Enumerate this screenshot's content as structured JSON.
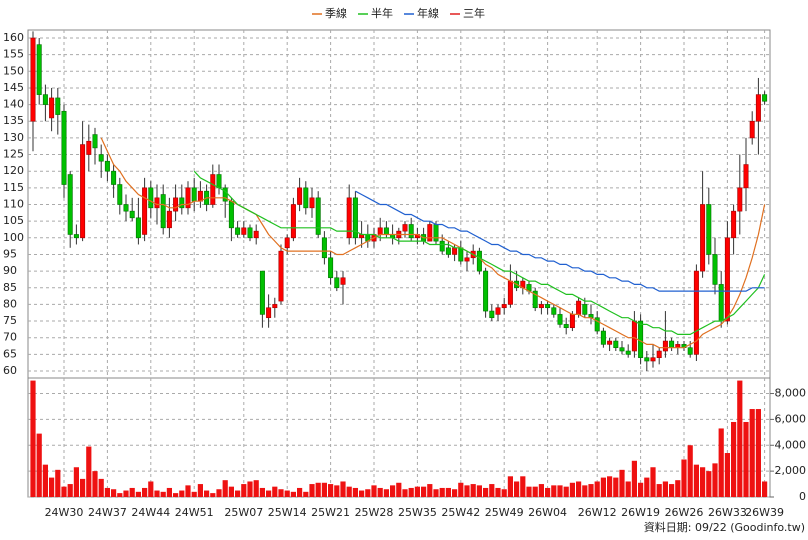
{
  "chart_data": [
    {
      "type": "candlestick",
      "categories": [
        null,
        null,
        null,
        null,
        null,
        "24W30",
        null,
        null,
        null,
        null,
        null,
        null,
        "24W37",
        null,
        null,
        null,
        null,
        null,
        null,
        "24W44",
        null,
        null,
        null,
        null,
        null,
        null,
        "24W51",
        null,
        null,
        null,
        null,
        null,
        null,
        null,
        "25W07",
        null,
        null,
        null,
        null,
        null,
        null,
        "25W14",
        null,
        null,
        null,
        null,
        null,
        null,
        "25W21",
        null,
        null,
        null,
        null,
        null,
        null,
        "25W28",
        null,
        null,
        null,
        null,
        null,
        null,
        "25W35",
        null,
        null,
        null,
        null,
        null,
        null,
        "25W42",
        null,
        null,
        null,
        null,
        null,
        null,
        "25W49",
        null,
        null,
        null,
        null,
        null,
        null,
        "26W04",
        null,
        null,
        null,
        null,
        null,
        null,
        null,
        "26W12",
        null,
        null,
        null,
        null,
        null,
        null,
        "26W19",
        null,
        null,
        null,
        null,
        null,
        null,
        "26W26",
        null,
        null,
        null,
        null,
        null,
        null,
        "26W33",
        null,
        null,
        null,
        null,
        null,
        "26W39"
      ],
      "open": [
        135,
        158,
        143,
        136,
        142,
        138,
        119,
        101,
        100,
        125,
        131,
        125,
        123,
        120,
        116,
        110,
        108,
        106,
        101,
        115,
        109,
        113,
        103,
        108,
        112,
        109,
        115,
        111,
        114,
        110,
        119,
        115,
        111,
        103,
        101,
        103,
        100,
        90,
        76,
        79,
        81,
        97,
        100,
        110,
        115,
        109,
        112,
        100,
        94,
        88,
        86,
        100,
        112,
        100,
        101,
        99,
        101,
        103,
        101,
        100,
        102,
        104,
        100,
        101,
        99,
        104,
        99,
        97,
        95,
        97,
        93,
        94,
        96,
        90,
        78,
        77,
        79,
        80,
        87,
        85,
        86,
        84,
        79,
        80,
        79,
        77,
        74,
        73,
        77,
        80,
        77,
        76,
        72,
        68,
        69,
        67,
        66,
        66,
        75,
        64,
        63,
        64,
        66,
        69,
        67,
        68,
        67,
        65,
        90,
        110,
        95,
        86,
        75,
        100,
        108,
        115,
        130,
        135,
        143
      ],
      "high": [
        162,
        160,
        146,
        145,
        145,
        140,
        120,
        104,
        135,
        134,
        133,
        128,
        125,
        122,
        118,
        113,
        112,
        112,
        118,
        117,
        116,
        116,
        112,
        116,
        116,
        117,
        118,
        117,
        116,
        122,
        122,
        116,
        112,
        105,
        105,
        104,
        104,
        90,
        83,
        82,
        98,
        101,
        112,
        118,
        117,
        115,
        114,
        102,
        96,
        90,
        90,
        116,
        114,
        105,
        104,
        103,
        106,
        105,
        104,
        103,
        105,
        106,
        103,
        103,
        105,
        105,
        101,
        99,
        98,
        99,
        96,
        98,
        97,
        91,
        80,
        80,
        82,
        92,
        90,
        88,
        87,
        85,
        81,
        81,
        80,
        79,
        76,
        78,
        82,
        82,
        80,
        78,
        73,
        70,
        70,
        69,
        68,
        78,
        77,
        66,
        68,
        67,
        78,
        70,
        69,
        69,
        69,
        92,
        120,
        115,
        100,
        90,
        105,
        110,
        125,
        130,
        138,
        148,
        144
      ],
      "low": [
        126,
        140,
        135,
        132,
        131,
        112,
        97,
        98,
        99,
        120,
        122,
        118,
        117,
        112,
        107,
        105,
        105,
        98,
        99,
        106,
        104,
        101,
        100,
        105,
        107,
        107,
        108,
        109,
        108,
        109,
        113,
        106,
        99,
        100,
        100,
        99,
        98,
        73,
        73,
        76,
        80,
        95,
        99,
        108,
        107,
        106,
        100,
        92,
        86,
        84,
        80,
        98,
        98,
        97,
        97,
        97,
        99,
        100,
        98,
        98,
        100,
        99,
        98,
        98,
        99,
        98,
        95,
        94,
        93,
        92,
        90,
        92,
        89,
        76,
        75,
        75,
        77,
        79,
        84,
        83,
        83,
        78,
        77,
        77,
        76,
        73,
        71,
        72,
        76,
        76,
        74,
        71,
        67,
        66,
        66,
        65,
        64,
        64,
        62,
        60,
        61,
        62,
        64,
        66,
        65,
        66,
        64,
        63,
        88,
        92,
        83,
        73,
        74,
        95,
        101,
        108,
        128,
        125,
        140
      ],
      "close": [
        160,
        143,
        140,
        142,
        137,
        116,
        101,
        100,
        128,
        129,
        127,
        123,
        120,
        116,
        110,
        108,
        106,
        100,
        115,
        109,
        112,
        103,
        108,
        112,
        109,
        115,
        111,
        114,
        110,
        119,
        115,
        111,
        103,
        101,
        103,
        100,
        102,
        77,
        79,
        80,
        96,
        100,
        110,
        115,
        109,
        112,
        101,
        94,
        88,
        85,
        88,
        112,
        100,
        101,
        99,
        101,
        103,
        101,
        100,
        102,
        104,
        100,
        101,
        99,
        104,
        99,
        96,
        95,
        97,
        93,
        94,
        96,
        90,
        78,
        76,
        79,
        80,
        87,
        85,
        87,
        84,
        79,
        80,
        79,
        77,
        74,
        73,
        77,
        81,
        77,
        76,
        72,
        68,
        69,
        67,
        66,
        65,
        75,
        64,
        63,
        64,
        66,
        69,
        67,
        68,
        67,
        65,
        90,
        110,
        95,
        86,
        75,
        100,
        108,
        115,
        122,
        135,
        143,
        141
      ],
      "up_color": "#ff0000",
      "down_color": "#00c000",
      "series": [
        {
          "name": "季線",
          "color": "#e07020",
          "values": [
            null,
            null,
            null,
            null,
            null,
            null,
            null,
            null,
            null,
            null,
            null,
            130,
            126,
            122,
            120,
            117,
            115,
            113,
            112,
            111,
            110,
            110,
            109,
            109,
            110,
            110,
            111,
            111,
            112,
            112,
            112,
            112,
            111,
            110,
            109,
            108,
            107,
            104,
            101,
            99,
            97,
            96,
            96,
            96,
            96,
            96,
            96,
            96,
            96,
            95,
            95,
            96,
            97,
            98,
            99,
            100,
            101,
            101,
            101,
            101,
            101,
            101,
            101,
            100,
            100,
            100,
            100,
            99,
            98,
            97,
            96,
            95,
            94,
            92,
            91,
            89,
            88,
            87,
            86,
            85,
            84,
            83,
            82,
            81,
            80,
            79,
            78,
            77,
            77,
            76,
            76,
            75,
            74,
            73,
            72,
            71,
            70,
            70,
            69,
            68,
            68,
            67,
            67,
            67,
            67,
            67,
            68,
            69,
            71,
            72,
            73,
            74,
            76,
            79,
            83,
            88,
            94,
            101,
            110
          ]
        },
        {
          "name": "半年",
          "color": "#20c020",
          "values": [
            null,
            null,
            null,
            null,
            null,
            null,
            null,
            null,
            null,
            null,
            null,
            null,
            null,
            null,
            null,
            null,
            null,
            null,
            null,
            null,
            null,
            null,
            null,
            null,
            null,
            null,
            120,
            118,
            117,
            116,
            115,
            114,
            112,
            110,
            109,
            108,
            107,
            106,
            105,
            104,
            103,
            103,
            103,
            103,
            103,
            103,
            103,
            103,
            103,
            102,
            102,
            102,
            102,
            101,
            101,
            101,
            100,
            100,
            100,
            99,
            99,
            99,
            99,
            99,
            98,
            98,
            98,
            98,
            97,
            97,
            96,
            95,
            94,
            93,
            92,
            91,
            90,
            90,
            89,
            88,
            87,
            87,
            86,
            86,
            85,
            84,
            83,
            83,
            82,
            81,
            81,
            80,
            79,
            78,
            77,
            76,
            76,
            75,
            74,
            74,
            73,
            73,
            72,
            72,
            71,
            71,
            71,
            72,
            73,
            74,
            75,
            75,
            76,
            77,
            79,
            81,
            83,
            85,
            89
          ]
        },
        {
          "name": "年線",
          "color": "#2060d0",
          "values": [
            null,
            null,
            null,
            null,
            null,
            null,
            null,
            null,
            null,
            null,
            null,
            null,
            null,
            null,
            null,
            null,
            null,
            null,
            null,
            null,
            null,
            null,
            null,
            null,
            null,
            null,
            null,
            null,
            null,
            null,
            null,
            null,
            null,
            null,
            null,
            null,
            null,
            null,
            null,
            null,
            null,
            null,
            null,
            null,
            null,
            null,
            null,
            null,
            null,
            null,
            null,
            null,
            114,
            113,
            112,
            111,
            110,
            110,
            109,
            108,
            107,
            107,
            106,
            105,
            105,
            104,
            104,
            103,
            103,
            102,
            102,
            101,
            100,
            99,
            98,
            98,
            97,
            96,
            96,
            95,
            95,
            94,
            94,
            93,
            93,
            92,
            92,
            91,
            91,
            90,
            90,
            89,
            89,
            88,
            88,
            87,
            87,
            86,
            86,
            85,
            85,
            84,
            84,
            84,
            84,
            84,
            84,
            84,
            84,
            84,
            84,
            84,
            84,
            84,
            84,
            84,
            85,
            85,
            85
          ]
        },
        {
          "name": "三年",
          "color": "#e02020"
        }
      ],
      "ylim": [
        57.9,
        162.4
      ],
      "yticks": [
        60,
        65,
        70,
        75,
        80,
        85,
        90,
        95,
        100,
        105,
        110,
        115,
        120,
        125,
        130,
        135,
        140,
        145,
        150,
        155,
        160
      ],
      "grid": true,
      "legend_position": "top"
    },
    {
      "type": "bar",
      "values": [
        9000,
        4900,
        2500,
        1500,
        2100,
        800,
        1000,
        2300,
        1400,
        3900,
        2000,
        1400,
        700,
        600,
        300,
        500,
        700,
        400,
        700,
        1200,
        500,
        400,
        700,
        300,
        500,
        900,
        400,
        1000,
        500,
        300,
        600,
        1300,
        800,
        500,
        1000,
        1200,
        1300,
        700,
        500,
        800,
        600,
        500,
        400,
        700,
        400,
        1000,
        1100,
        1100,
        1000,
        900,
        1200,
        800,
        700,
        500,
        600,
        900,
        700,
        600,
        900,
        1100,
        600,
        700,
        800,
        800,
        1000,
        600,
        700,
        700,
        600,
        1100,
        900,
        1000,
        900,
        700,
        1000,
        700,
        600,
        1600,
        1200,
        1600,
        800,
        800,
        1000,
        700,
        900,
        900,
        800,
        1100,
        1200,
        900,
        1000,
        1200,
        1500,
        1600,
        1500,
        2100,
        1200,
        2800,
        1100,
        1500,
        2300,
        1000,
        1200,
        1000,
        1300,
        2900,
        4000,
        2500,
        2300,
        2000,
        2600,
        5300,
        3400,
        5800,
        9000,
        5800,
        6800,
        6800,
        1200
      ],
      "color": "#ee1111",
      "ylim": [
        0,
        9200
      ],
      "yticks": [
        0,
        {
          "value": 2000,
          "label": "2,000"
        },
        {
          "value": 4000,
          "label": "4,000"
        },
        {
          "value": 6000,
          "label": "6,000"
        },
        {
          "value": 8000,
          "label": "8,000"
        }
      ],
      "grid": true
    }
  ],
  "footer": "資料日期: 09/22  (Goodinfo.tw)"
}
